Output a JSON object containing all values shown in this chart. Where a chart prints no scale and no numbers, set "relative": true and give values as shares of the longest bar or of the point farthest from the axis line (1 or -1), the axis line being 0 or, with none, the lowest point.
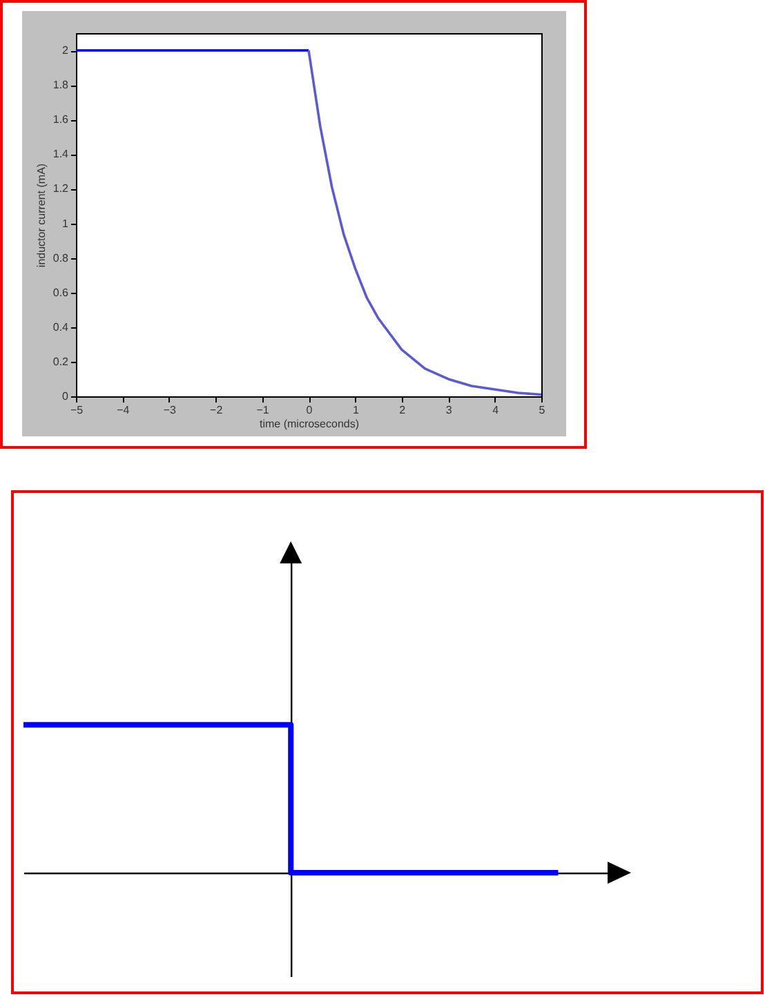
{
  "chart_data": [
    {
      "type": "line",
      "xlabel": "time (microseconds)",
      "ylabel": "inductor current (mA)",
      "xlim": [
        -5,
        5
      ],
      "ylim": [
        0,
        2.1
      ],
      "xticks": [
        -5,
        -4,
        -3,
        -2,
        -1,
        0,
        1,
        2,
        3,
        4,
        5
      ],
      "yticks": [
        0,
        0.2,
        0.4,
        0.6,
        0.8,
        1,
        1.2,
        1.4,
        1.6,
        1.8,
        2
      ],
      "series": [
        {
          "color": "#0000ff",
          "x": [
            -5,
            0
          ],
          "values": [
            2,
            2
          ]
        },
        {
          "color": "#5a5ad6",
          "x": [
            0,
            0.25,
            0.5,
            0.75,
            1,
            1.25,
            1.5,
            2,
            2.5,
            3,
            3.5,
            4,
            4.5,
            5
          ],
          "values": [
            2,
            1.56,
            1.21,
            0.94,
            0.74,
            0.57,
            0.45,
            0.27,
            0.16,
            0.1,
            0.06,
            0.04,
            0.02,
            0.01
          ]
        }
      ]
    },
    {
      "type": "step",
      "relative": true,
      "categories": [
        null,
        null,
        null
      ],
      "series": [
        {
          "color": "#0000ff",
          "values": [
            1,
            0,
            0
          ]
        }
      ]
    }
  ]
}
